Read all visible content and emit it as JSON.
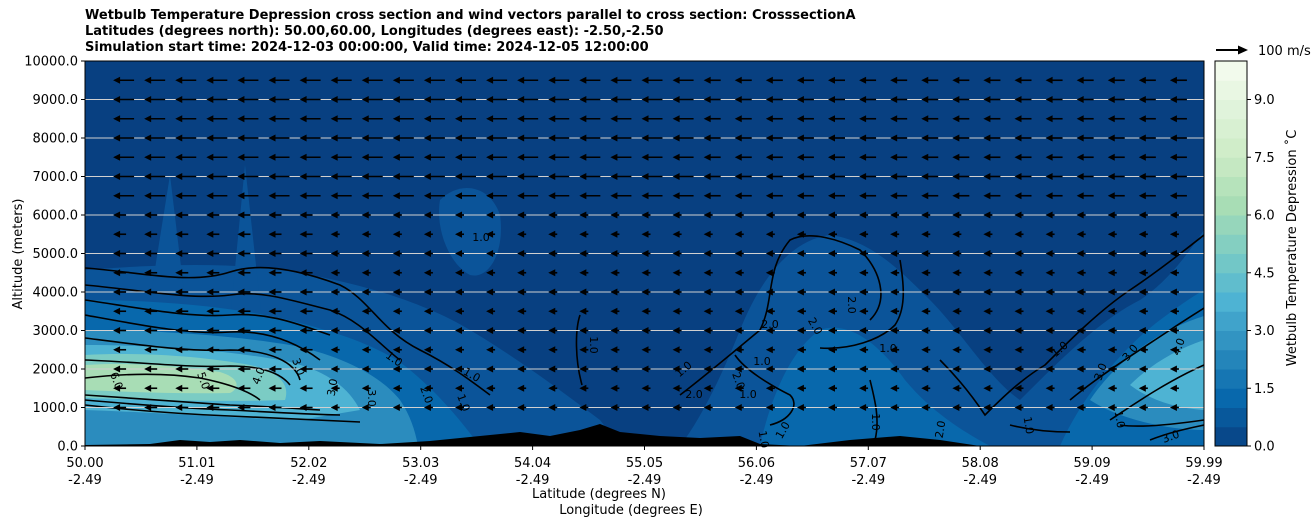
{
  "chart_data": {
    "type": "contour",
    "title_lines": [
      "Wetbulb Temperature Depression cross section and wind vectors parallel to cross section: CrosssectionA",
      "Latitudes (degrees north): 50.00,60.00, Longitudes (degrees east): -2.50,-2.50",
      "Simulation start time: 2024-12-03 00:00:00, Valid time: 2024-12-05 12:00:00"
    ],
    "ylabel": "Altitude (meters)",
    "xlabel_lines": [
      "Latitude (degrees N)",
      "Longitude (degrees E)"
    ],
    "ylim": [
      0,
      10000
    ],
    "y_ticks": [
      "0.0",
      "1000.0",
      "2000.0",
      "3000.0",
      "4000.0",
      "5000.0",
      "6000.0",
      "7000.0",
      "8000.0",
      "9000.0",
      "10000.0"
    ],
    "x_ticks": [
      {
        "lat": "50.00",
        "lon": "-2.49"
      },
      {
        "lat": "51.01",
        "lon": "-2.49"
      },
      {
        "lat": "52.02",
        "lon": "-2.49"
      },
      {
        "lat": "53.03",
        "lon": "-2.49"
      },
      {
        "lat": "54.04",
        "lon": "-2.49"
      },
      {
        "lat": "55.05",
        "lon": "-2.49"
      },
      {
        "lat": "56.06",
        "lon": "-2.49"
      },
      {
        "lat": "57.07",
        "lon": "-2.49"
      },
      {
        "lat": "58.08",
        "lon": "-2.49"
      },
      {
        "lat": "59.09",
        "lon": "-2.49"
      },
      {
        "lat": "59.99",
        "lon": "-2.49"
      }
    ],
    "colorbar": {
      "label": "Wetbulb Temperature Depression ˚C",
      "ticks": [
        "0.0",
        "1.5",
        "3.0",
        "4.5",
        "6.0",
        "7.5",
        "9.0"
      ],
      "range": [
        0,
        10
      ],
      "colors": [
        "#084081",
        "#0868ac",
        "#2b8cbe",
        "#4eb3d3",
        "#7bccc4",
        "#a8ddb5",
        "#ccebc5",
        "#e0f3db",
        "#f7fcf0"
      ]
    },
    "quiver_key": {
      "label": "100 m/s"
    },
    "contour_labels": [
      "1.0",
      "2.0",
      "3.0",
      "4.0",
      "5.0",
      "6.0"
    ],
    "grid": true
  }
}
